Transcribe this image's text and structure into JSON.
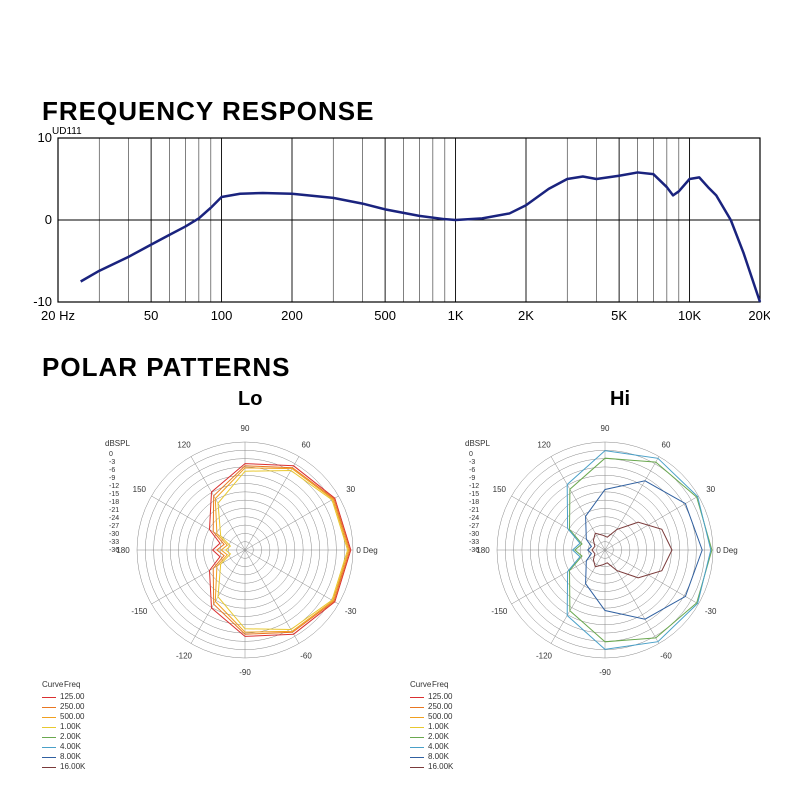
{
  "freq_title": "FREQUENCY RESPONSE",
  "freq_subtitle": "UD111",
  "polar_title": "POLAR PATTERNS",
  "polar_lo_label": "Lo",
  "polar_hi_label": "Hi",
  "freq_chart": {
    "type": "line",
    "title_fontsize": 26,
    "ylim": [
      -10,
      10
    ],
    "yticks": [
      -10,
      0,
      10
    ],
    "xlim_hz": [
      20,
      20000
    ],
    "xlog": true,
    "xtick_labels": [
      "20 Hz",
      "50",
      "100",
      "200",
      "500",
      "1K",
      "2K",
      "5K",
      "10K",
      "20K"
    ],
    "xtick_values": [
      20,
      50,
      100,
      200,
      500,
      1000,
      2000,
      5000,
      10000,
      20000
    ],
    "minor_gridlines_hz": [
      30,
      40,
      60,
      70,
      80,
      90,
      300,
      400,
      600,
      700,
      800,
      900,
      3000,
      4000,
      6000,
      7000,
      8000,
      9000
    ],
    "line_color": "#1a237e",
    "line_width": 2.5,
    "axis_color": "#000000",
    "grid_color": "#000000",
    "background_color": "#ffffff",
    "curve_points_hz_db": [
      [
        25,
        -7.5
      ],
      [
        30,
        -6.2
      ],
      [
        40,
        -4.5
      ],
      [
        50,
        -3.0
      ],
      [
        60,
        -1.8
      ],
      [
        70,
        -0.8
      ],
      [
        80,
        0.2
      ],
      [
        90,
        1.5
      ],
      [
        100,
        2.8
      ],
      [
        120,
        3.2
      ],
      [
        150,
        3.3
      ],
      [
        200,
        3.2
      ],
      [
        300,
        2.7
      ],
      [
        400,
        2.0
      ],
      [
        500,
        1.3
      ],
      [
        700,
        0.5
      ],
      [
        900,
        0.1
      ],
      [
        1000,
        0.0
      ],
      [
        1300,
        0.2
      ],
      [
        1700,
        0.8
      ],
      [
        2000,
        1.8
      ],
      [
        2500,
        3.8
      ],
      [
        3000,
        5.0
      ],
      [
        3500,
        5.3
      ],
      [
        4000,
        5.0
      ],
      [
        5000,
        5.4
      ],
      [
        6000,
        5.8
      ],
      [
        7000,
        5.6
      ],
      [
        8000,
        4.0
      ],
      [
        8500,
        3.0
      ],
      [
        9000,
        3.5
      ],
      [
        10000,
        5.0
      ],
      [
        11000,
        5.2
      ],
      [
        12000,
        4.0
      ],
      [
        13000,
        3.0
      ],
      [
        15000,
        0.0
      ],
      [
        17000,
        -4.0
      ],
      [
        20000,
        -10.0
      ]
    ]
  },
  "polar_common": {
    "type": "polar",
    "angle_ticks_deg": [
      0,
      30,
      60,
      90,
      120,
      150,
      180,
      -150,
      -120,
      -90,
      -60,
      -30
    ],
    "angle_labels": [
      "0 Deg",
      "30",
      "60",
      "90",
      "120",
      "150",
      "180",
      "-150",
      "-120",
      "-90",
      "-60",
      "-30"
    ],
    "radial_ticks_db": [
      0,
      -3,
      -6,
      -9,
      -12,
      -15,
      -18,
      -21,
      -24,
      -27,
      -30,
      -33,
      -36
    ],
    "radial_label": "dBSPL",
    "grid_color": "#888888",
    "grid_width": 0.5,
    "line_width": 1.0,
    "label_fontsize": 8
  },
  "polar_legend": {
    "header_curve": "Curve",
    "header_freq": "Freq",
    "items": [
      {
        "label": "125.00",
        "color": "#d93030"
      },
      {
        "label": "250.00",
        "color": "#e87722"
      },
      {
        "label": "500.00",
        "color": "#f0a020"
      },
      {
        "label": "1.00K",
        "color": "#e8c830"
      },
      {
        "label": "2.00K",
        "color": "#6aa84f"
      },
      {
        "label": "4.00K",
        "color": "#4aa0c8"
      },
      {
        "label": "8.00K",
        "color": "#3060a0"
      },
      {
        "label": "16.00K",
        "color": "#7a3a3a"
      }
    ]
  },
  "polar_lo": {
    "title_fontsize": 18,
    "series": [
      {
        "color": "#d93030",
        "r_at_deg": {
          "0": 0.98,
          "30": 0.96,
          "60": 0.9,
          "90": 0.8,
          "120": 0.62,
          "150": 0.38,
          "165": 0.24,
          "180": 0.3,
          "-165": 0.24,
          "-150": 0.38,
          "-120": 0.62,
          "-90": 0.8,
          "-60": 0.9,
          "-30": 0.96
        }
      },
      {
        "color": "#e87722",
        "r_at_deg": {
          "0": 0.97,
          "30": 0.95,
          "60": 0.88,
          "90": 0.78,
          "120": 0.58,
          "150": 0.34,
          "165": 0.2,
          "180": 0.26,
          "-165": 0.2,
          "-150": 0.34,
          "-120": 0.58,
          "-90": 0.78,
          "-60": 0.88,
          "-30": 0.95
        }
      },
      {
        "color": "#f0a020",
        "r_at_deg": {
          "0": 0.96,
          "30": 0.94,
          "60": 0.87,
          "90": 0.76,
          "120": 0.55,
          "150": 0.3,
          "165": 0.17,
          "180": 0.22,
          "-165": 0.17,
          "-150": 0.3,
          "-120": 0.55,
          "-90": 0.76,
          "-60": 0.87,
          "-30": 0.94
        }
      },
      {
        "color": "#e8c830",
        "r_at_deg": {
          "0": 0.95,
          "30": 0.93,
          "60": 0.85,
          "90": 0.73,
          "120": 0.5,
          "150": 0.26,
          "165": 0.14,
          "180": 0.18,
          "-165": 0.14,
          "-150": 0.26,
          "-120": 0.5,
          "-90": 0.73,
          "-60": 0.85,
          "-30": 0.93
        }
      }
    ]
  },
  "polar_hi": {
    "title_fontsize": 18,
    "series": [
      {
        "color": "#6aa84f",
        "r_at_deg": {
          "0": 0.99,
          "30": 0.98,
          "60": 0.94,
          "90": 0.85,
          "120": 0.65,
          "150": 0.38,
          "165": 0.22,
          "180": 0.28,
          "-165": 0.22,
          "-150": 0.38,
          "-120": 0.65,
          "-90": 0.85,
          "-60": 0.94,
          "-30": 0.98
        }
      },
      {
        "color": "#4aa0c8",
        "r_at_deg": {
          "0": 0.98,
          "30": 0.99,
          "60": 0.98,
          "90": 0.92,
          "120": 0.7,
          "150": 0.4,
          "165": 0.24,
          "180": 0.3,
          "-165": 0.24,
          "-150": 0.4,
          "-120": 0.7,
          "-90": 0.92,
          "-60": 0.98,
          "-30": 0.99
        }
      },
      {
        "color": "#3060a0",
        "r_at_deg": {
          "0": 0.9,
          "30": 0.86,
          "60": 0.74,
          "90": 0.56,
          "120": 0.36,
          "150": 0.2,
          "165": 0.13,
          "180": 0.16,
          "-165": 0.13,
          "-150": 0.2,
          "-120": 0.36,
          "-90": 0.56,
          "-60": 0.74,
          "-30": 0.86
        }
      },
      {
        "color": "#7a3a3a",
        "r_at_deg": {
          "0": 0.62,
          "20": 0.56,
          "40": 0.4,
          "60": 0.22,
          "80": 0.12,
          "100": 0.14,
          "120": 0.18,
          "140": 0.14,
          "160": 0.1,
          "180": 0.12,
          "-160": 0.1,
          "-140": 0.14,
          "-120": 0.18,
          "-100": 0.14,
          "-80": 0.12,
          "-60": 0.22,
          "-40": 0.4,
          "-20": 0.56
        }
      }
    ]
  }
}
